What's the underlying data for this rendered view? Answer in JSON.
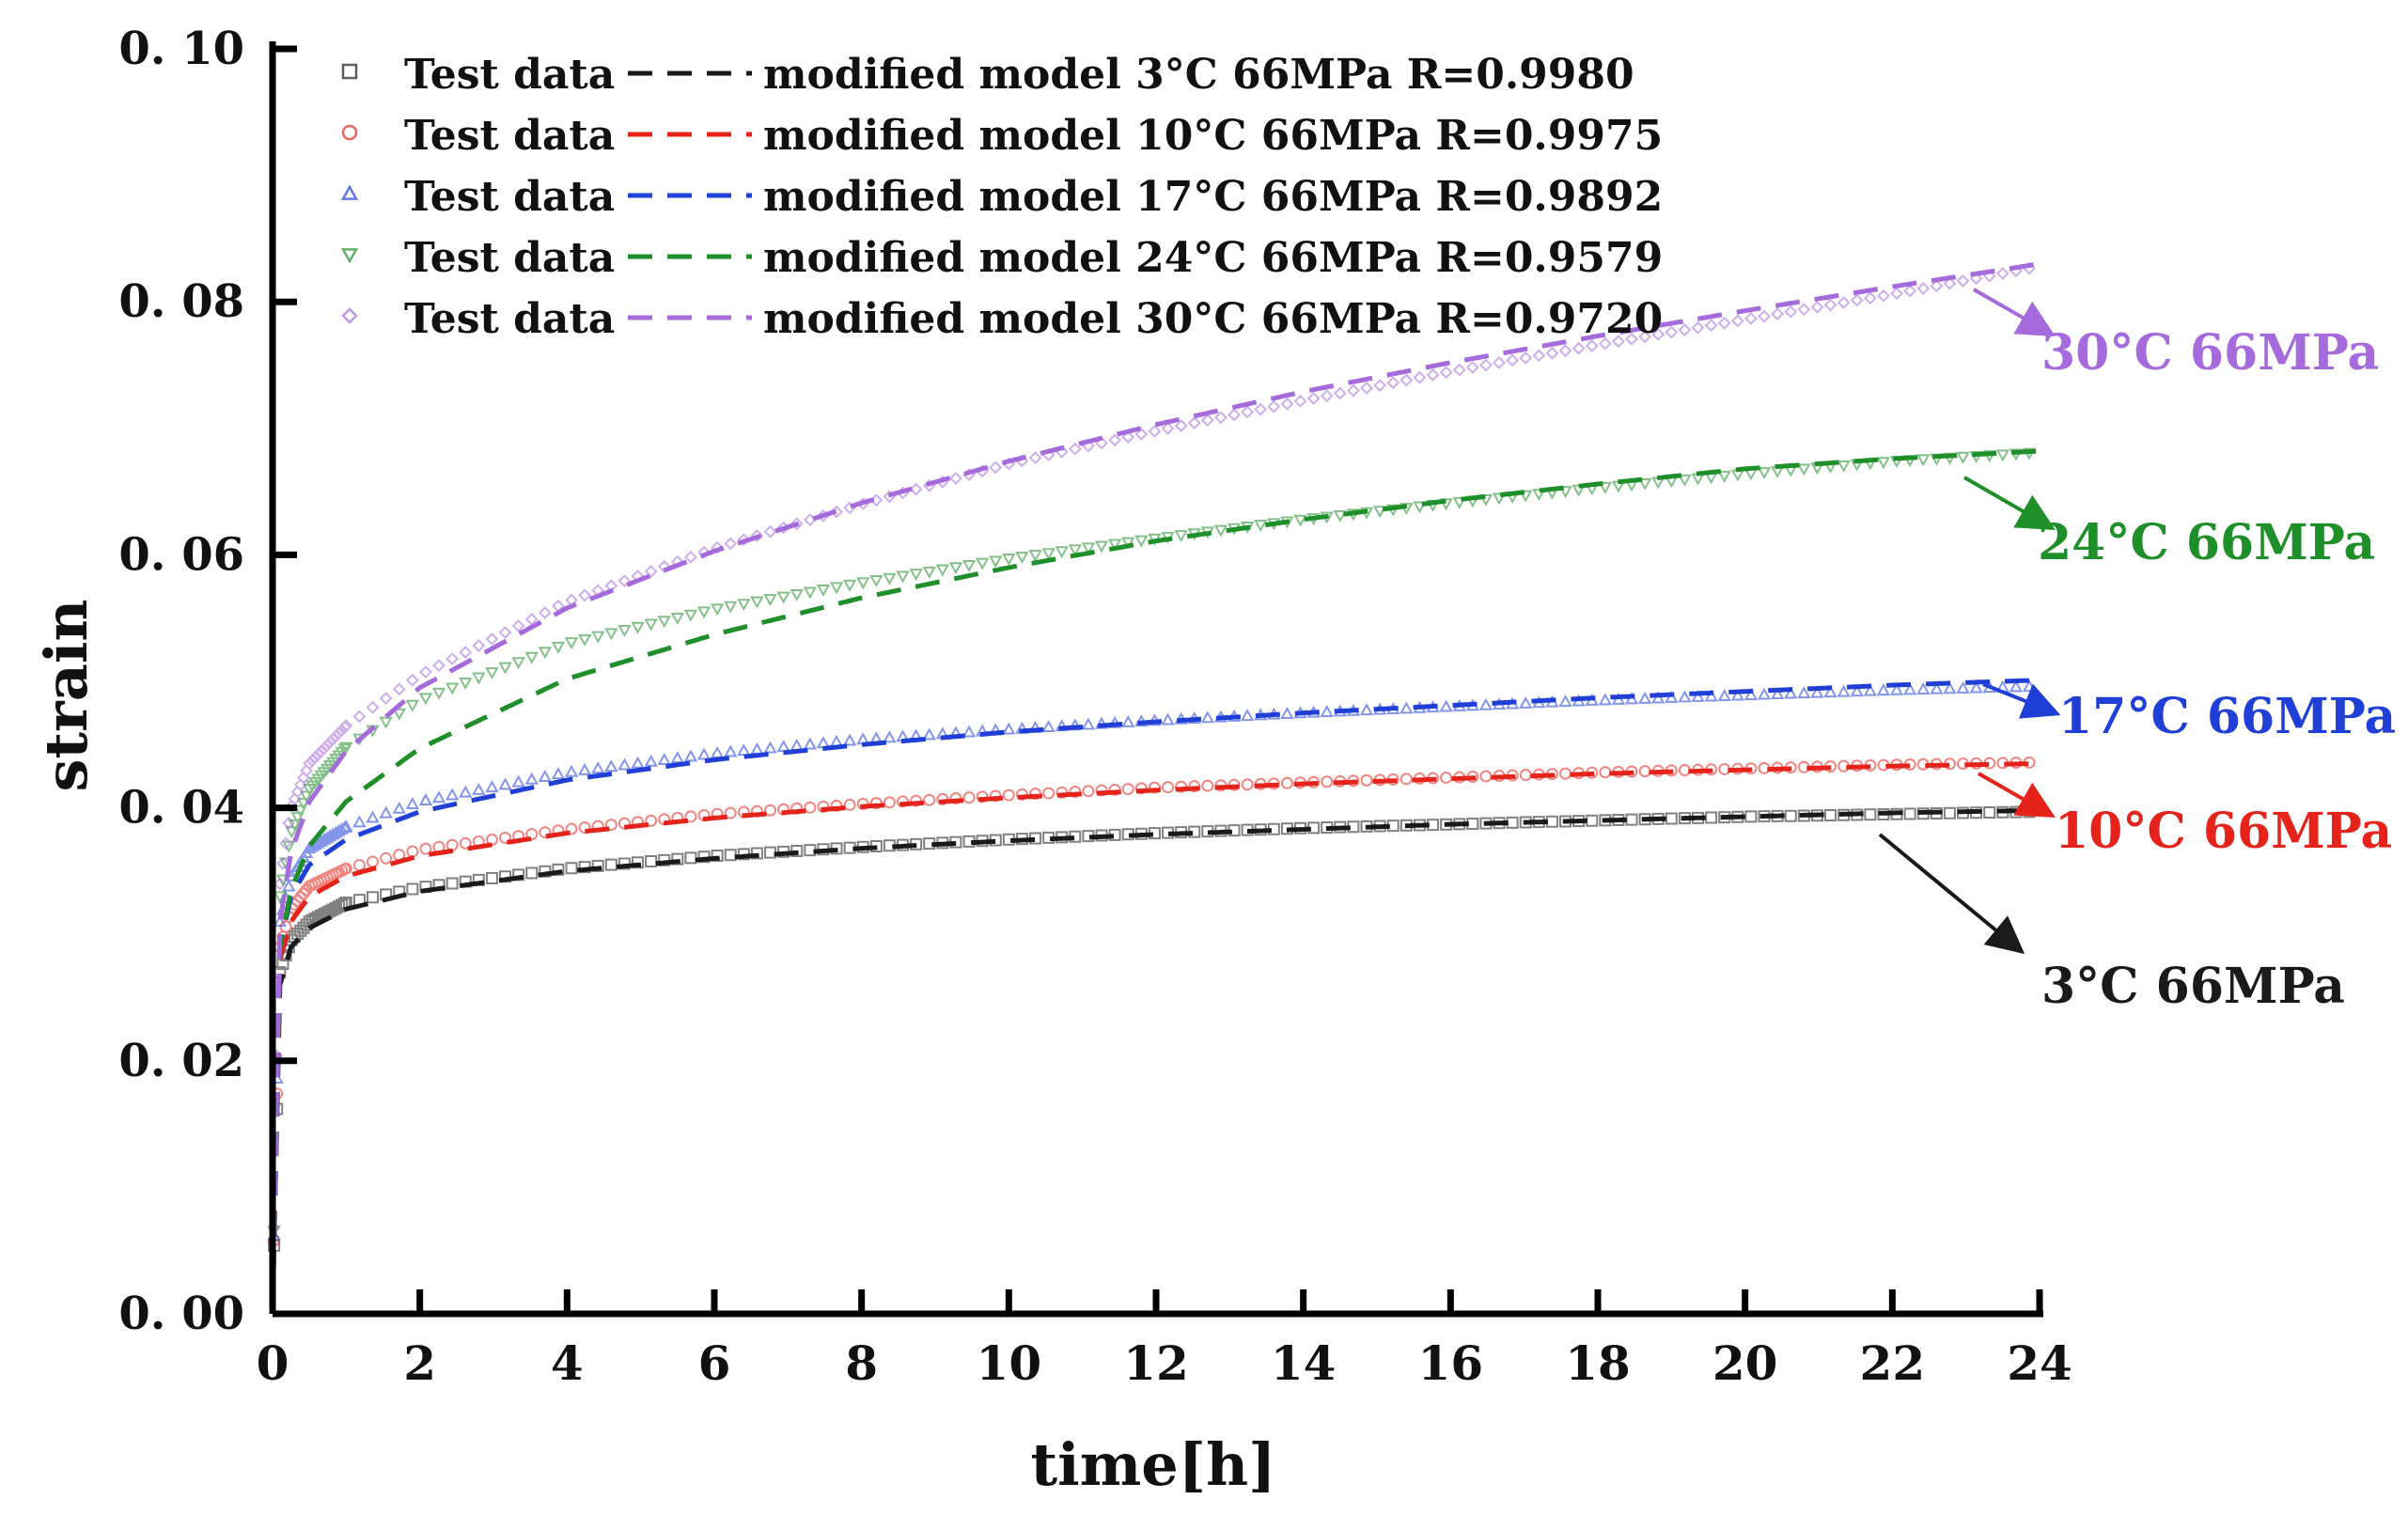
{
  "chart_data": {
    "type": "line",
    "title": "",
    "xlabel": "time[h]",
    "ylabel": "strain",
    "xlim": [
      0,
      24
    ],
    "ylim": [
      0,
      0.1
    ],
    "x_ticks": [
      0,
      2,
      4,
      6,
      8,
      10,
      12,
      14,
      16,
      18,
      20,
      22,
      24
    ],
    "y_ticks": [
      0,
      0.02,
      0.04,
      0.06,
      0.08,
      0.1
    ],
    "y_tick_labels": [
      "0. 00",
      "0. 02",
      "0. 04",
      "0. 06",
      "0. 08",
      "0. 10"
    ],
    "legend_position": "top-left",
    "legend": [
      {
        "test_label": "Test data",
        "model_label": "modified model 3°C   66MPa R=0.9980"
      },
      {
        "test_label": "Test data",
        "model_label": "modified model 10°C 66MPa R=0.9975"
      },
      {
        "test_label": "Test data",
        "model_label": "modified model 17°C 66MPa R=0.9892"
      },
      {
        "test_label": "Test data",
        "model_label": "modified model 24°C 66MPa R=0.9579"
      },
      {
        "test_label": "Test data",
        "model_label": "modified model 30°C 66MPa R=0.9720"
      }
    ],
    "series": [
      {
        "name": "3°C 66MPa",
        "annotation": "3°C 66MPa",
        "color": "#1a1a1a",
        "marker": "square",
        "x": [
          0,
          0.1,
          0.25,
          0.5,
          1,
          2,
          4,
          6,
          8,
          10,
          12,
          14,
          16,
          18,
          20,
          22,
          24
        ],
        "test_data": [
          0,
          0.027,
          0.0295,
          0.031,
          0.0325,
          0.0337,
          0.0352,
          0.0362,
          0.0369,
          0.0375,
          0.038,
          0.0384,
          0.0387,
          0.039,
          0.0393,
          0.0395,
          0.0397
        ],
        "model": [
          0,
          0.026,
          0.029,
          0.0305,
          0.032,
          0.0334,
          0.035,
          0.036,
          0.0368,
          0.0374,
          0.0379,
          0.0383,
          0.0387,
          0.039,
          0.0393,
          0.0396,
          0.0398
        ]
      },
      {
        "name": "10°C 66MPa",
        "annotation": "10°C 66MPa",
        "color": "#e5231b",
        "marker": "circle",
        "x": [
          0,
          0.1,
          0.25,
          0.5,
          1,
          2,
          4,
          6,
          8,
          10,
          12,
          14,
          16,
          18,
          20,
          22,
          24
        ],
        "test_data": [
          0,
          0.029,
          0.032,
          0.0338,
          0.0352,
          0.0367,
          0.0383,
          0.0395,
          0.0403,
          0.041,
          0.0416,
          0.042,
          0.0424,
          0.0428,
          0.0431,
          0.0434,
          0.0436
        ],
        "model": [
          0,
          0.028,
          0.031,
          0.033,
          0.0346,
          0.0362,
          0.038,
          0.0392,
          0.0401,
          0.0408,
          0.0414,
          0.0419,
          0.0423,
          0.0427,
          0.043,
          0.0433,
          0.0435
        ]
      },
      {
        "name": "17°C 66MPa",
        "annotation": "17°C 66MPa",
        "color": "#1f3fd6",
        "marker": "triangle-up",
        "x": [
          0,
          0.1,
          0.25,
          0.5,
          1,
          2,
          4,
          6,
          8,
          10,
          12,
          14,
          16,
          18,
          20,
          22,
          24
        ],
        "test_data": [
          0,
          0.031,
          0.0345,
          0.0368,
          0.0385,
          0.0405,
          0.0428,
          0.0443,
          0.0454,
          0.0462,
          0.0469,
          0.0475,
          0.048,
          0.0485,
          0.0489,
          0.0493,
          0.0496
        ],
        "model": [
          0,
          0.029,
          0.033,
          0.0355,
          0.0375,
          0.0397,
          0.0422,
          0.0438,
          0.045,
          0.046,
          0.0468,
          0.0475,
          0.0481,
          0.0487,
          0.0492,
          0.0497,
          0.0501
        ]
      },
      {
        "name": "24°C 66MPa",
        "annotation": "24°C 66MPa",
        "color": "#1f8f2a",
        "marker": "triangle-down",
        "x": [
          0,
          0.1,
          0.25,
          0.5,
          1,
          2,
          4,
          6,
          8,
          10,
          12,
          14,
          16,
          18,
          20,
          22,
          24
        ],
        "test_data": [
          0,
          0.033,
          0.038,
          0.0415,
          0.0448,
          0.0485,
          0.053,
          0.0557,
          0.0578,
          0.0597,
          0.0613,
          0.0628,
          0.0641,
          0.0653,
          0.0664,
          0.0674,
          0.0681
        ],
        "model": [
          0,
          0.029,
          0.0335,
          0.037,
          0.0405,
          0.0447,
          0.0502,
          0.0537,
          0.0566,
          0.059,
          0.0611,
          0.0628,
          0.0643,
          0.0656,
          0.0668,
          0.0676,
          0.0682
        ]
      },
      {
        "name": "30°C 66MPa",
        "annotation": "30°C 66MPa",
        "color": "#a56bdc",
        "marker": "diamond",
        "x": [
          0,
          0.1,
          0.25,
          0.5,
          1,
          2,
          4,
          6,
          8,
          10,
          12,
          14,
          16,
          18,
          20,
          22,
          24
        ],
        "test_data": [
          0,
          0.034,
          0.04,
          0.0435,
          0.0465,
          0.0505,
          0.0563,
          0.0605,
          0.064,
          0.0672,
          0.0698,
          0.0722,
          0.0745,
          0.0766,
          0.0786,
          0.0806,
          0.0828
        ],
        "model": [
          0,
          0.031,
          0.0365,
          0.0405,
          0.0445,
          0.0495,
          0.0558,
          0.0603,
          0.0641,
          0.0674,
          0.0703,
          0.0729,
          0.0752,
          0.0773,
          0.0793,
          0.0812,
          0.083
        ]
      }
    ]
  }
}
